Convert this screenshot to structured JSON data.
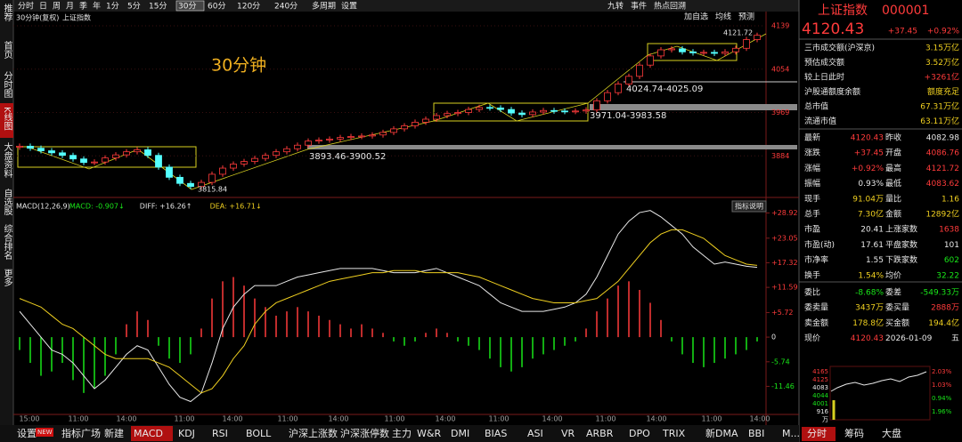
{
  "toolbar": {
    "periods": [
      "分时",
      "日",
      "周",
      "月",
      "季",
      "年",
      "1分",
      "5分",
      "15分",
      "30分",
      "60分",
      "120分",
      "240分",
      "多周期",
      "设置"
    ],
    "selected": "30分",
    "tools_top": [
      "九转",
      "事件",
      "热点回溯"
    ],
    "tools_bottom": [
      "加自选",
      "均线",
      "预测"
    ]
  },
  "sidebar": [
    "推荐",
    "首页",
    "分时图",
    "K线图",
    "大盘资料",
    "自选股",
    "综合排名",
    "更多"
  ],
  "sidebar_selected": "K线图",
  "chart": {
    "subtitle": "30分钟(复权)",
    "name": "上证指数",
    "annotation": "30分钟",
    "labels": [
      "4121.72",
      "4024.74-4025.09",
      "3971.04-3983.58",
      "3893.46-3900.52",
      "3815.84"
    ],
    "ylim": [
      3806,
      4167
    ],
    "yticks": [
      4139,
      4054,
      3969,
      3884
    ],
    "close": [
      3903,
      3899,
      3894,
      3890,
      3885,
      3878,
      3871,
      3872,
      3880,
      3886,
      3892,
      3896,
      3885,
      3862,
      3842,
      3830,
      3824,
      3832,
      3848,
      3860,
      3868,
      3873,
      3879,
      3885,
      3892,
      3898,
      3905,
      3913,
      3915,
      3917,
      3920,
      3922,
      3923,
      3925,
      3930,
      3937,
      3943,
      3950,
      3956,
      3963,
      3967,
      3969,
      3975,
      3979,
      3978,
      3975,
      3968,
      3965,
      3970,
      3973,
      3972,
      3971,
      3972,
      3974,
      3992,
      4008,
      4025,
      4040,
      4062,
      4080,
      4092,
      4094,
      4088,
      4086,
      4087,
      4085,
      4088,
      4095,
      4112,
      4120.43
    ],
    "time_labels": [
      "15:00",
      "11:00",
      "14:00",
      "11:00",
      "14:00",
      "11:00",
      "14:00",
      "11:00",
      "14:00",
      "11:00",
      "14:00",
      "11:00",
      "14:00",
      "11:00",
      "14:00"
    ]
  },
  "macd": {
    "params": "MACD(12,26,9)",
    "legend": [
      {
        "text": "MACD: -0.907↓",
        "color": "#19e619"
      },
      {
        "text": "DIFF: +16.26↑",
        "color": "#e8e8e8"
      },
      {
        "text": "DEA: +16.71↓",
        "color": "#f0d020"
      }
    ],
    "button": "指标说明",
    "ylim": [
      -18,
      31.5
    ],
    "yticks": [
      {
        "value": 28.92,
        "label": "+28.92"
      },
      {
        "value": 23.05,
        "label": "+23.05"
      },
      {
        "value": 17.32,
        "label": "+17.32"
      },
      {
        "value": 11.59,
        "label": "+11.59"
      },
      {
        "value": 5.72,
        "label": "+5.72"
      },
      0,
      -5.74,
      -11.46
    ],
    "hist": [
      -3,
      -6,
      -9,
      -8,
      -6,
      -10,
      -13,
      -12,
      -9,
      -4,
      3,
      6,
      4,
      -2,
      -5,
      -6,
      -4,
      2,
      9,
      13,
      14,
      12,
      9,
      7,
      5,
      6,
      7,
      6,
      5,
      4,
      3,
      2,
      3,
      2,
      1,
      -1,
      -2,
      -1,
      1,
      2,
      1,
      -1,
      -2,
      -3,
      -5,
      -7,
      -8,
      -7,
      -5,
      -4,
      -3,
      -2,
      -1,
      2,
      6,
      9,
      12,
      13,
      11,
      8,
      4,
      -1,
      -4,
      -6,
      -7,
      -6,
      -5,
      -4,
      -3,
      -1
    ],
    "diff": [
      6,
      3,
      0,
      -3,
      -4,
      -6,
      -9,
      -12,
      -10,
      -7,
      -4,
      -2,
      -3,
      -7,
      -11,
      -14,
      -15,
      -13,
      -6,
      2,
      7,
      10,
      12,
      12,
      12,
      13,
      14,
      14.5,
      15,
      15.5,
      16,
      16,
      16,
      16,
      15.5,
      15,
      15,
      15,
      15.5,
      16,
      15,
      14,
      13,
      12,
      10,
      8,
      7,
      6,
      6,
      6,
      6.5,
      7,
      8,
      10,
      14,
      19,
      24,
      27,
      29,
      29.5,
      28,
      26,
      24,
      21,
      19,
      17,
      17.5,
      17,
      16.5,
      16.26
    ],
    "dea": [
      9,
      8,
      7,
      5,
      3,
      2,
      0,
      -2,
      -4,
      -5,
      -5,
      -5,
      -5,
      -6,
      -7,
      -9,
      -11,
      -13,
      -12,
      -9,
      -5,
      -2,
      3,
      6,
      8,
      9,
      10,
      11,
      12,
      13,
      13.5,
      14,
      14.5,
      15,
      15,
      15.5,
      15.5,
      15.5,
      15,
      15,
      15,
      15,
      14.5,
      14,
      13,
      12,
      11,
      10,
      9,
      8.5,
      8,
      8,
      8,
      8.5,
      9,
      11,
      13,
      16,
      19,
      22,
      24,
      25,
      25,
      24,
      23,
      21,
      19,
      18,
      17,
      16.71
    ]
  },
  "bottom_tabs": [
    "设置",
    "指标广场",
    "新建",
    "MACD",
    "KDJ",
    "RSI",
    "BOLL",
    "沪深上涨数",
    "沪深涨停数",
    "主力",
    "W&R",
    "DMI",
    "BIAS",
    "ASI",
    "VR",
    "ARBR",
    "DPO",
    "TRIX",
    "新DMA",
    "BBI",
    "M..."
  ],
  "bottom_badge": "NEW",
  "bottom_selected": "MACD",
  "right_tabs": [
    "分时",
    "筹码",
    "大盘"
  ],
  "quote": {
    "name": "上证指数",
    "code": "000001",
    "price": "4120.43",
    "change": "+37.45",
    "pct": "+0.92%",
    "summary": [
      [
        "三市成交额(沪深京)",
        "3.15万亿"
      ],
      [
        "预估成交额",
        "3.52万亿"
      ],
      [
        "较上日此时",
        "+3261亿"
      ],
      [
        "沪股通额度余额",
        "额度充足"
      ],
      [
        "总市值",
        "67.31万亿"
      ],
      [
        "流通市值",
        "63.11万亿"
      ]
    ],
    "grid": [
      [
        "最新",
        "4120.43",
        "昨收",
        "4082.98"
      ],
      [
        "涨跌",
        "+37.45",
        "开盘",
        "4086.76"
      ],
      [
        "涨幅",
        "+0.92%",
        "最高",
        "4121.72"
      ],
      [
        "振幅",
        "0.93%",
        "最低",
        "4083.62"
      ],
      [
        "现手",
        "91.04万",
        "量比",
        "1.16"
      ],
      [
        "总手",
        "7.30亿",
        "金额",
        "12892亿"
      ],
      [
        "市盈",
        "20.41",
        "上涨家数",
        "1638"
      ],
      [
        "市盈(动)",
        "17.61",
        "平盘家数",
        "101"
      ],
      [
        "市净率",
        "1.55",
        "下跌家数",
        "602"
      ],
      [
        "换手",
        "1.54%",
        "均价",
        "32.22"
      ],
      [
        "委比",
        "-8.68%",
        "委差",
        "-549.33万"
      ],
      [
        "委卖量",
        "3437万",
        "委买量",
        "2888万"
      ],
      [
        "卖金额",
        "178.8亿",
        "买金额",
        "194.4亿"
      ],
      [
        "现价",
        "4120.43",
        "2026-01-09",
        "五"
      ]
    ],
    "mini_left": [
      "4165",
      "4125",
      "4083",
      "4044",
      "4001",
      "916",
      "万"
    ],
    "mini_right": [
      "2.03%",
      "1.03%",
      "0.94%",
      "1.96%"
    ]
  }
}
